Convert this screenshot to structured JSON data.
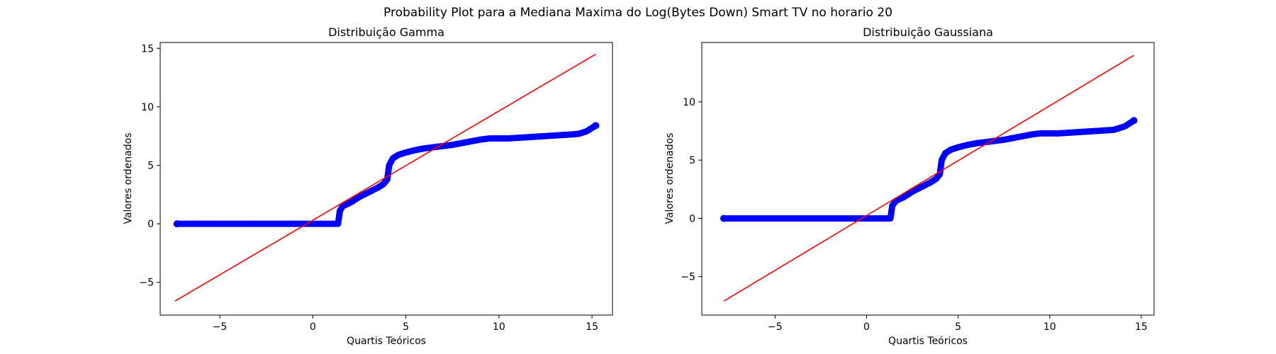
{
  "figure": {
    "title": "Probability Plot para a Mediana Maxima do Log(Bytes Down) Smart TV no horario 20"
  },
  "chart_data": [
    {
      "type": "scatter",
      "title": "Distribuição Gamma",
      "xlabel": "Quartis Teóricos",
      "ylabel": "Valores ordenados",
      "xlim": [
        -8.2,
        16.1
      ],
      "ylim": [
        -7.8,
        15.5
      ],
      "xticks": [
        -5,
        0,
        5,
        10,
        15
      ],
      "yticks": [
        -5,
        0,
        5,
        10,
        15
      ],
      "colors": {
        "points": "#0000ff",
        "fit_line": "#ff0000"
      },
      "series": [
        {
          "points": [
            [
              -7.3,
              0
            ],
            [
              -6.9,
              0
            ],
            [
              -6.6,
              0
            ],
            [
              -6.3,
              0
            ],
            [
              -6.0,
              0
            ],
            [
              -5.5,
              0
            ],
            [
              -5.0,
              0
            ],
            [
              -4.5,
              0
            ],
            [
              -4.0,
              0
            ],
            [
              -3.5,
              0
            ],
            [
              -3.0,
              0
            ],
            [
              -2.5,
              0
            ],
            [
              -2.0,
              0
            ],
            [
              -1.5,
              0
            ],
            [
              -1.0,
              0
            ],
            [
              -0.5,
              0
            ],
            [
              0.0,
              0
            ],
            [
              0.5,
              0
            ],
            [
              1.0,
              0
            ],
            [
              1.35,
              0
            ],
            [
              1.4,
              0.5
            ],
            [
              1.45,
              1.1
            ],
            [
              1.6,
              1.5
            ],
            [
              2.0,
              1.8
            ],
            [
              2.5,
              2.3
            ],
            [
              3.0,
              2.7
            ],
            [
              3.5,
              3.1
            ],
            [
              3.8,
              3.4
            ],
            [
              4.0,
              3.8
            ],
            [
              4.05,
              4.4
            ],
            [
              4.1,
              5.0
            ],
            [
              4.3,
              5.6
            ],
            [
              4.6,
              5.9
            ],
            [
              5.0,
              6.1
            ],
            [
              5.5,
              6.3
            ],
            [
              6.0,
              6.45
            ],
            [
              6.5,
              6.55
            ],
            [
              7.0,
              6.65
            ],
            [
              7.5,
              6.75
            ],
            [
              8.0,
              6.9
            ],
            [
              8.5,
              7.05
            ],
            [
              9.0,
              7.2
            ],
            [
              9.5,
              7.3
            ],
            [
              10.0,
              7.3
            ],
            [
              10.5,
              7.3
            ],
            [
              11.0,
              7.35
            ],
            [
              11.5,
              7.4
            ],
            [
              12.0,
              7.45
            ],
            [
              12.5,
              7.5
            ],
            [
              13.0,
              7.55
            ],
            [
              13.5,
              7.6
            ],
            [
              14.0,
              7.65
            ],
            [
              14.3,
              7.7
            ],
            [
              14.7,
              7.9
            ],
            [
              15.2,
              8.4
            ]
          ]
        }
      ],
      "fit_line": {
        "x": [
          -7.4,
          15.2
        ],
        "y": [
          -6.6,
          14.5
        ]
      }
    },
    {
      "type": "scatter",
      "title": "Distribuição Gaussiana",
      "xlabel": "Quartis Teóricos",
      "ylabel": "Valores ordenados",
      "xlim": [
        -9.0,
        15.7
      ],
      "ylim": [
        -8.3,
        15.1
      ],
      "xticks": [
        -5,
        0,
        5,
        10,
        15
      ],
      "yticks": [
        -5,
        0,
        5,
        10
      ],
      "colors": {
        "points": "#0000ff",
        "fit_line": "#ff0000"
      },
      "series": [
        {
          "points": [
            [
              -7.8,
              0
            ],
            [
              -7.3,
              0
            ],
            [
              -7.0,
              0
            ],
            [
              -6.6,
              0
            ],
            [
              -6.2,
              0
            ],
            [
              -5.7,
              0
            ],
            [
              -5.2,
              0
            ],
            [
              -4.7,
              0
            ],
            [
              -4.2,
              0
            ],
            [
              -3.7,
              0
            ],
            [
              -3.2,
              0
            ],
            [
              -2.7,
              0
            ],
            [
              -2.2,
              0
            ],
            [
              -1.7,
              0
            ],
            [
              -1.2,
              0
            ],
            [
              -0.7,
              0
            ],
            [
              -0.2,
              0
            ],
            [
              0.3,
              0
            ],
            [
              0.8,
              0
            ],
            [
              1.3,
              0
            ],
            [
              1.35,
              0.5
            ],
            [
              1.4,
              1.1
            ],
            [
              1.6,
              1.5
            ],
            [
              2.0,
              1.8
            ],
            [
              2.5,
              2.3
            ],
            [
              3.0,
              2.7
            ],
            [
              3.5,
              3.1
            ],
            [
              3.8,
              3.4
            ],
            [
              4.0,
              3.8
            ],
            [
              4.05,
              4.4
            ],
            [
              4.1,
              5.0
            ],
            [
              4.3,
              5.6
            ],
            [
              4.6,
              5.9
            ],
            [
              5.0,
              6.1
            ],
            [
              5.5,
              6.3
            ],
            [
              6.0,
              6.45
            ],
            [
              6.5,
              6.55
            ],
            [
              7.0,
              6.65
            ],
            [
              7.5,
              6.75
            ],
            [
              8.0,
              6.9
            ],
            [
              8.5,
              7.05
            ],
            [
              9.0,
              7.2
            ],
            [
              9.5,
              7.3
            ],
            [
              10.0,
              7.3
            ],
            [
              10.5,
              7.3
            ],
            [
              11.0,
              7.35
            ],
            [
              11.5,
              7.4
            ],
            [
              12.0,
              7.45
            ],
            [
              12.5,
              7.5
            ],
            [
              13.0,
              7.55
            ],
            [
              13.5,
              7.6
            ],
            [
              14.1,
              7.9
            ],
            [
              14.6,
              8.4
            ]
          ]
        }
      ],
      "fit_line": {
        "x": [
          -7.8,
          14.6
        ],
        "y": [
          -7.1,
          14.0
        ]
      }
    }
  ]
}
